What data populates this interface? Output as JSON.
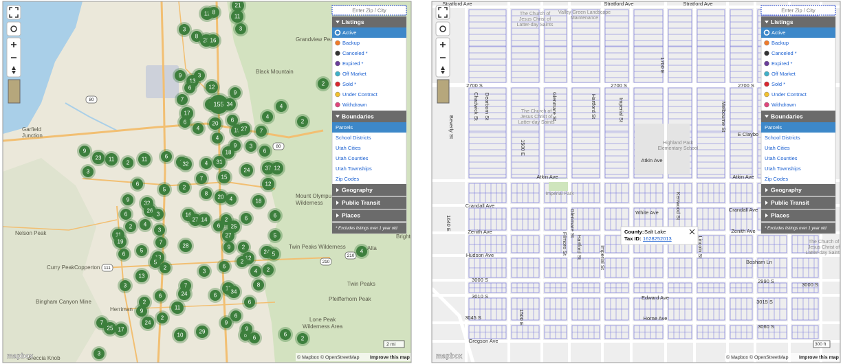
{
  "layer_panel": {
    "search_placeholder": "Enter Zip / City",
    "listings": {
      "title": "Listings",
      "items": [
        {
          "label": "Active",
          "color": "#2e8b3a"
        },
        {
          "label": "Backup",
          "color": "#f07a2a"
        },
        {
          "label": "Canceled *",
          "color": "#333333"
        },
        {
          "label": "Expired *",
          "color": "#6a3d9a"
        },
        {
          "label": "Off Market",
          "color": "#3fb0c8"
        },
        {
          "label": "Sold *",
          "color": "#d9262e"
        },
        {
          "label": "Under Contract",
          "color": "#f2c12e"
        },
        {
          "label": "Withdrawn",
          "color": "#e0457b"
        }
      ]
    },
    "boundaries": {
      "title": "Boundaries",
      "items": [
        "Parcels",
        "School Districts",
        "Utah Cities",
        "Utah Counties",
        "Utah Townships",
        "Zip Codes"
      ]
    },
    "collapsed": [
      "Geography",
      "Public Transit",
      "Places"
    ],
    "note": "* Excludes listings over 1 year old"
  },
  "attribution": {
    "logo": "mapbox",
    "credits": "© Mapbox © OpenStreetMap",
    "improve": "Improve this map"
  },
  "region_map": {
    "clusters": [
      11,
      8,
      21,
      11,
      3,
      8,
      3,
      25,
      16,
      9,
      3,
      13,
      6,
      12,
      9,
      7,
      155,
      34,
      7,
      17,
      6,
      4,
      20,
      6,
      19,
      27,
      7,
      4,
      4,
      2,
      2,
      4,
      9,
      3,
      6,
      9,
      23,
      11,
      2,
      11,
      6,
      2,
      32,
      4,
      18,
      31,
      24,
      37,
      12,
      3,
      6,
      5,
      2,
      7,
      15,
      12,
      8,
      20,
      4,
      18,
      9,
      32,
      26,
      6,
      3,
      6,
      16,
      27,
      14,
      6,
      2,
      25,
      6,
      27,
      2,
      4,
      3,
      11,
      19,
      7,
      28,
      9,
      2,
      12,
      2,
      24,
      5,
      5,
      6,
      5,
      13,
      5,
      2,
      3,
      6,
      4,
      2,
      4,
      13,
      3,
      7,
      24,
      6,
      11,
      34,
      6,
      8,
      2,
      9,
      6,
      11,
      2,
      24,
      7,
      25,
      17,
      9,
      6,
      10,
      29,
      8,
      6,
      9,
      6,
      3,
      2
    ],
    "places": [
      "Grandview Peak",
      "Black Mountain",
      "Garfield",
      "Junction",
      "Mount Olympus",
      "Wilderness",
      "Nelson Peak",
      "Curry Peak",
      "Copperton",
      "Twin Peaks Wilderness",
      "Alta",
      "Twin Peaks",
      "Bingham Canyon Mine",
      "Herriman",
      "Pfeifferhorn Peak",
      "Lone Peak",
      "Wilderness Area",
      "Breccia Knob",
      "Brighto"
    ],
    "highway_shields": [
      "80",
      "80",
      "111",
      "210",
      "210"
    ],
    "scale": "2 mi"
  },
  "parcel_map": {
    "streets": [
      "Stratford Ave",
      "Stratford Ave",
      "Stratford Ave",
      "2700 S",
      "2700 S",
      "2700 S",
      "1700 E",
      "Beverly St",
      "Chadwick St",
      "Dearborn St",
      "Glenmare St",
      "Hartford St",
      "Imperial St",
      "Melbourne St",
      "1500 E",
      "E Claybo",
      "Atkin Ave",
      "Atkin Ave",
      "Atkin Ave",
      "Crandall Ave",
      "Crandall Ave",
      "White Ave",
      "Zenith Ave",
      "Zenith Ave",
      "Hudson Ave",
      "Bosham Ln",
      "3000 S",
      "3000 S",
      "2990 S",
      "3010 S",
      "Edward Ave",
      "3015 S",
      "Horne Ave",
      "3060 S",
      "3045 S",
      "Gregson Ave",
      "Filmore St",
      "Glenmare St",
      "Hartford St",
      "Imperial St",
      "Kenwood St",
      "Lincoln St",
      "1640 E",
      "1500 E"
    ],
    "places": [
      "The Church of",
      "Jesus Christ of",
      "Latter-day Saints",
      "Valley Green Landscape",
      "Maintenance",
      "The Church of",
      "Jesus Christ of",
      "Latter-day Saints",
      "Highland Park",
      "Elementary School",
      "Imperial Park",
      "The Church of",
      "Jesus Christ of",
      "Latter-day Saints"
    ],
    "popup": {
      "county_label": "County:",
      "county": "Salt Lake",
      "tax_label": "Tax ID:",
      "tax_id": "1628252013"
    },
    "scale": "300 ft"
  }
}
